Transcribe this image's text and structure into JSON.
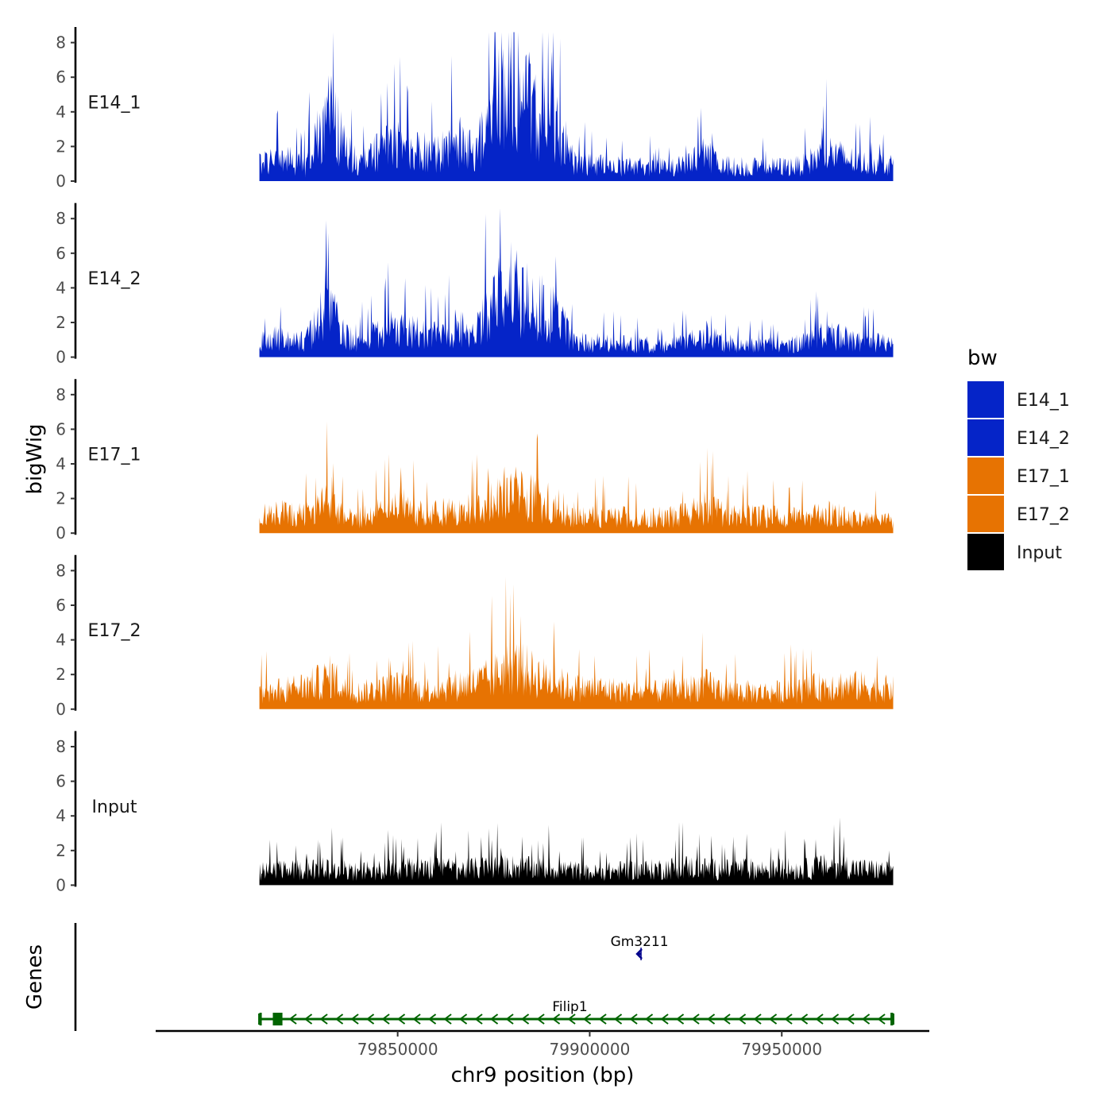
{
  "chart_data": {
    "type": "area",
    "title": "",
    "xlabel": "chr9 position (bp)",
    "ylabel": "bigWig",
    "genes_axis_label": "Genes",
    "xlim": [
      79787000,
      79988000
    ],
    "data_range": [
      79814000,
      79979000
    ],
    "ylim": [
      0,
      8.9
    ],
    "y_ticks": [
      0,
      2,
      4,
      6,
      8
    ],
    "x_ticks": [
      79850000,
      79900000,
      79950000
    ],
    "x_tick_labels": [
      "79850000",
      "79900000",
      "79950000"
    ],
    "legend": {
      "title": "bw",
      "placement": "right",
      "items": [
        {
          "label": "E14_1",
          "color": "#0524C8"
        },
        {
          "label": "E14_2",
          "color": "#0524C8"
        },
        {
          "label": "E17_1",
          "color": "#E77302"
        },
        {
          "label": "E17_2",
          "color": "#E77302"
        },
        {
          "label": "Input",
          "color": "#000000"
        }
      ]
    },
    "series": [
      {
        "name": "E14_1",
        "color": "#0524C8",
        "profile": [
          [
            79814000,
            1.2
          ],
          [
            79820000,
            1.5
          ],
          [
            79826000,
            1.0
          ],
          [
            79830000,
            3.5
          ],
          [
            79833000,
            4.5
          ],
          [
            79836000,
            2.2
          ],
          [
            79840000,
            1.1
          ],
          [
            79845000,
            2.0
          ],
          [
            79850000,
            2.6
          ],
          [
            79855000,
            2.0
          ],
          [
            79860000,
            1.8
          ],
          [
            79866000,
            2.6
          ],
          [
            79870000,
            1.9
          ],
          [
            79874000,
            3.8
          ],
          [
            79877000,
            5.8
          ],
          [
            79880000,
            6.8
          ],
          [
            79883000,
            5.5
          ],
          [
            79886000,
            4.5
          ],
          [
            79890000,
            3.8
          ],
          [
            79893000,
            2.8
          ],
          [
            79896000,
            1.2
          ],
          [
            79905000,
            1.0
          ],
          [
            79915000,
            0.9
          ],
          [
            79925000,
            1.0
          ],
          [
            79930000,
            1.8
          ],
          [
            79935000,
            1.0
          ],
          [
            79945000,
            0.9
          ],
          [
            79955000,
            1.0
          ],
          [
            79962000,
            1.9
          ],
          [
            79970000,
            1.2
          ],
          [
            79979000,
            1.1
          ]
        ]
      },
      {
        "name": "E14_2",
        "color": "#0524C8",
        "profile": [
          [
            79814000,
            1.0
          ],
          [
            79820000,
            1.3
          ],
          [
            79826000,
            1.0
          ],
          [
            79830000,
            2.6
          ],
          [
            79833000,
            2.9
          ],
          [
            79836000,
            1.6
          ],
          [
            79840000,
            0.9
          ],
          [
            79845000,
            1.6
          ],
          [
            79850000,
            1.9
          ],
          [
            79855000,
            1.6
          ],
          [
            79860000,
            1.4
          ],
          [
            79866000,
            2.0
          ],
          [
            79870000,
            1.6
          ],
          [
            79874000,
            3.0
          ],
          [
            79877000,
            4.2
          ],
          [
            79880000,
            4.6
          ],
          [
            79883000,
            3.9
          ],
          [
            79886000,
            3.4
          ],
          [
            79890000,
            2.9
          ],
          [
            79893000,
            2.1
          ],
          [
            79896000,
            1.0
          ],
          [
            79905000,
            0.9
          ],
          [
            79915000,
            0.8
          ],
          [
            79925000,
            0.9
          ],
          [
            79930000,
            1.5
          ],
          [
            79935000,
            0.9
          ],
          [
            79945000,
            0.8
          ],
          [
            79955000,
            0.9
          ],
          [
            79962000,
            1.5
          ],
          [
            79970000,
            1.0
          ],
          [
            79979000,
            0.9
          ]
        ]
      },
      {
        "name": "E17_1",
        "color": "#E77302",
        "profile": [
          [
            79814000,
            1.1
          ],
          [
            79820000,
            1.3
          ],
          [
            79826000,
            1.2
          ],
          [
            79830000,
            1.8
          ],
          [
            79833000,
            2.3
          ],
          [
            79836000,
            1.0
          ],
          [
            79840000,
            1.0
          ],
          [
            79845000,
            1.4
          ],
          [
            79850000,
            1.9
          ],
          [
            79855000,
            1.4
          ],
          [
            79860000,
            1.3
          ],
          [
            79866000,
            1.5
          ],
          [
            79870000,
            1.6
          ],
          [
            79874000,
            2.0
          ],
          [
            79877000,
            2.6
          ],
          [
            79880000,
            2.7
          ],
          [
            79883000,
            2.5
          ],
          [
            79886000,
            2.2
          ],
          [
            79890000,
            1.9
          ],
          [
            79893000,
            1.6
          ],
          [
            79896000,
            1.0
          ],
          [
            79905000,
            1.1
          ],
          [
            79915000,
            1.0
          ],
          [
            79925000,
            1.2
          ],
          [
            79930000,
            1.7
          ],
          [
            79935000,
            1.2
          ],
          [
            79945000,
            1.1
          ],
          [
            79955000,
            1.0
          ],
          [
            79962000,
            1.3
          ],
          [
            79970000,
            0.9
          ],
          [
            79979000,
            0.8
          ]
        ]
      },
      {
        "name": "E17_2",
        "color": "#E77302",
        "profile": [
          [
            79814000,
            1.1
          ],
          [
            79820000,
            1.3
          ],
          [
            79826000,
            1.5
          ],
          [
            79830000,
            1.8
          ],
          [
            79833000,
            2.2
          ],
          [
            79836000,
            1.3
          ],
          [
            79840000,
            1.1
          ],
          [
            79845000,
            1.3
          ],
          [
            79850000,
            1.5
          ],
          [
            79855000,
            1.3
          ],
          [
            79860000,
            1.3
          ],
          [
            79866000,
            1.6
          ],
          [
            79870000,
            1.7
          ],
          [
            79874000,
            2.0
          ],
          [
            79877000,
            2.5
          ],
          [
            79880000,
            2.8
          ],
          [
            79883000,
            2.6
          ],
          [
            79886000,
            2.2
          ],
          [
            79890000,
            1.9
          ],
          [
            79893000,
            1.6
          ],
          [
            79896000,
            1.4
          ],
          [
            79905000,
            1.3
          ],
          [
            79915000,
            1.1
          ],
          [
            79925000,
            1.3
          ],
          [
            79930000,
            1.6
          ],
          [
            79935000,
            1.2
          ],
          [
            79945000,
            1.1
          ],
          [
            79955000,
            1.2
          ],
          [
            79962000,
            1.6
          ],
          [
            79970000,
            1.5
          ],
          [
            79979000,
            1.3
          ]
        ]
      },
      {
        "name": "Input",
        "color": "#000000",
        "profile": [
          [
            79814000,
            0.9
          ],
          [
            79820000,
            1.0
          ],
          [
            79826000,
            1.0
          ],
          [
            79830000,
            1.1
          ],
          [
            79835000,
            1.0
          ],
          [
            79840000,
            0.9
          ],
          [
            79845000,
            1.0
          ],
          [
            79850000,
            1.1
          ],
          [
            79855000,
            1.1
          ],
          [
            79860000,
            1.2
          ],
          [
            79866000,
            1.0
          ],
          [
            79870000,
            1.1
          ],
          [
            79875000,
            1.2
          ],
          [
            79880000,
            1.2
          ],
          [
            79885000,
            1.1
          ],
          [
            79890000,
            1.1
          ],
          [
            79895000,
            1.0
          ],
          [
            79900000,
            0.8
          ],
          [
            79905000,
            0.9
          ],
          [
            79910000,
            1.0
          ],
          [
            79915000,
            1.0
          ],
          [
            79920000,
            1.1
          ],
          [
            79925000,
            1.2
          ],
          [
            79930000,
            1.1
          ],
          [
            79935000,
            1.0
          ],
          [
            79940000,
            1.1
          ],
          [
            79945000,
            1.0
          ],
          [
            79950000,
            1.1
          ],
          [
            79955000,
            1.0
          ],
          [
            79960000,
            1.2
          ],
          [
            79965000,
            1.3
          ],
          [
            79970000,
            1.1
          ],
          [
            79975000,
            1.0
          ],
          [
            79979000,
            0.9
          ]
        ]
      }
    ],
    "genes": [
      {
        "name": "Filip1",
        "start": 79814000,
        "end": 79979000,
        "strand": "-",
        "color": "#006400",
        "row": 0,
        "exons": [
          [
            79814000,
            79814600
          ],
          [
            79817500,
            79820000
          ],
          [
            79978300,
            79979000
          ]
        ]
      },
      {
        "name": "Gm3211",
        "start": 79912600,
        "end": 79913300,
        "strand": "-",
        "color": "#00008B",
        "row": 1,
        "exons": []
      }
    ]
  }
}
